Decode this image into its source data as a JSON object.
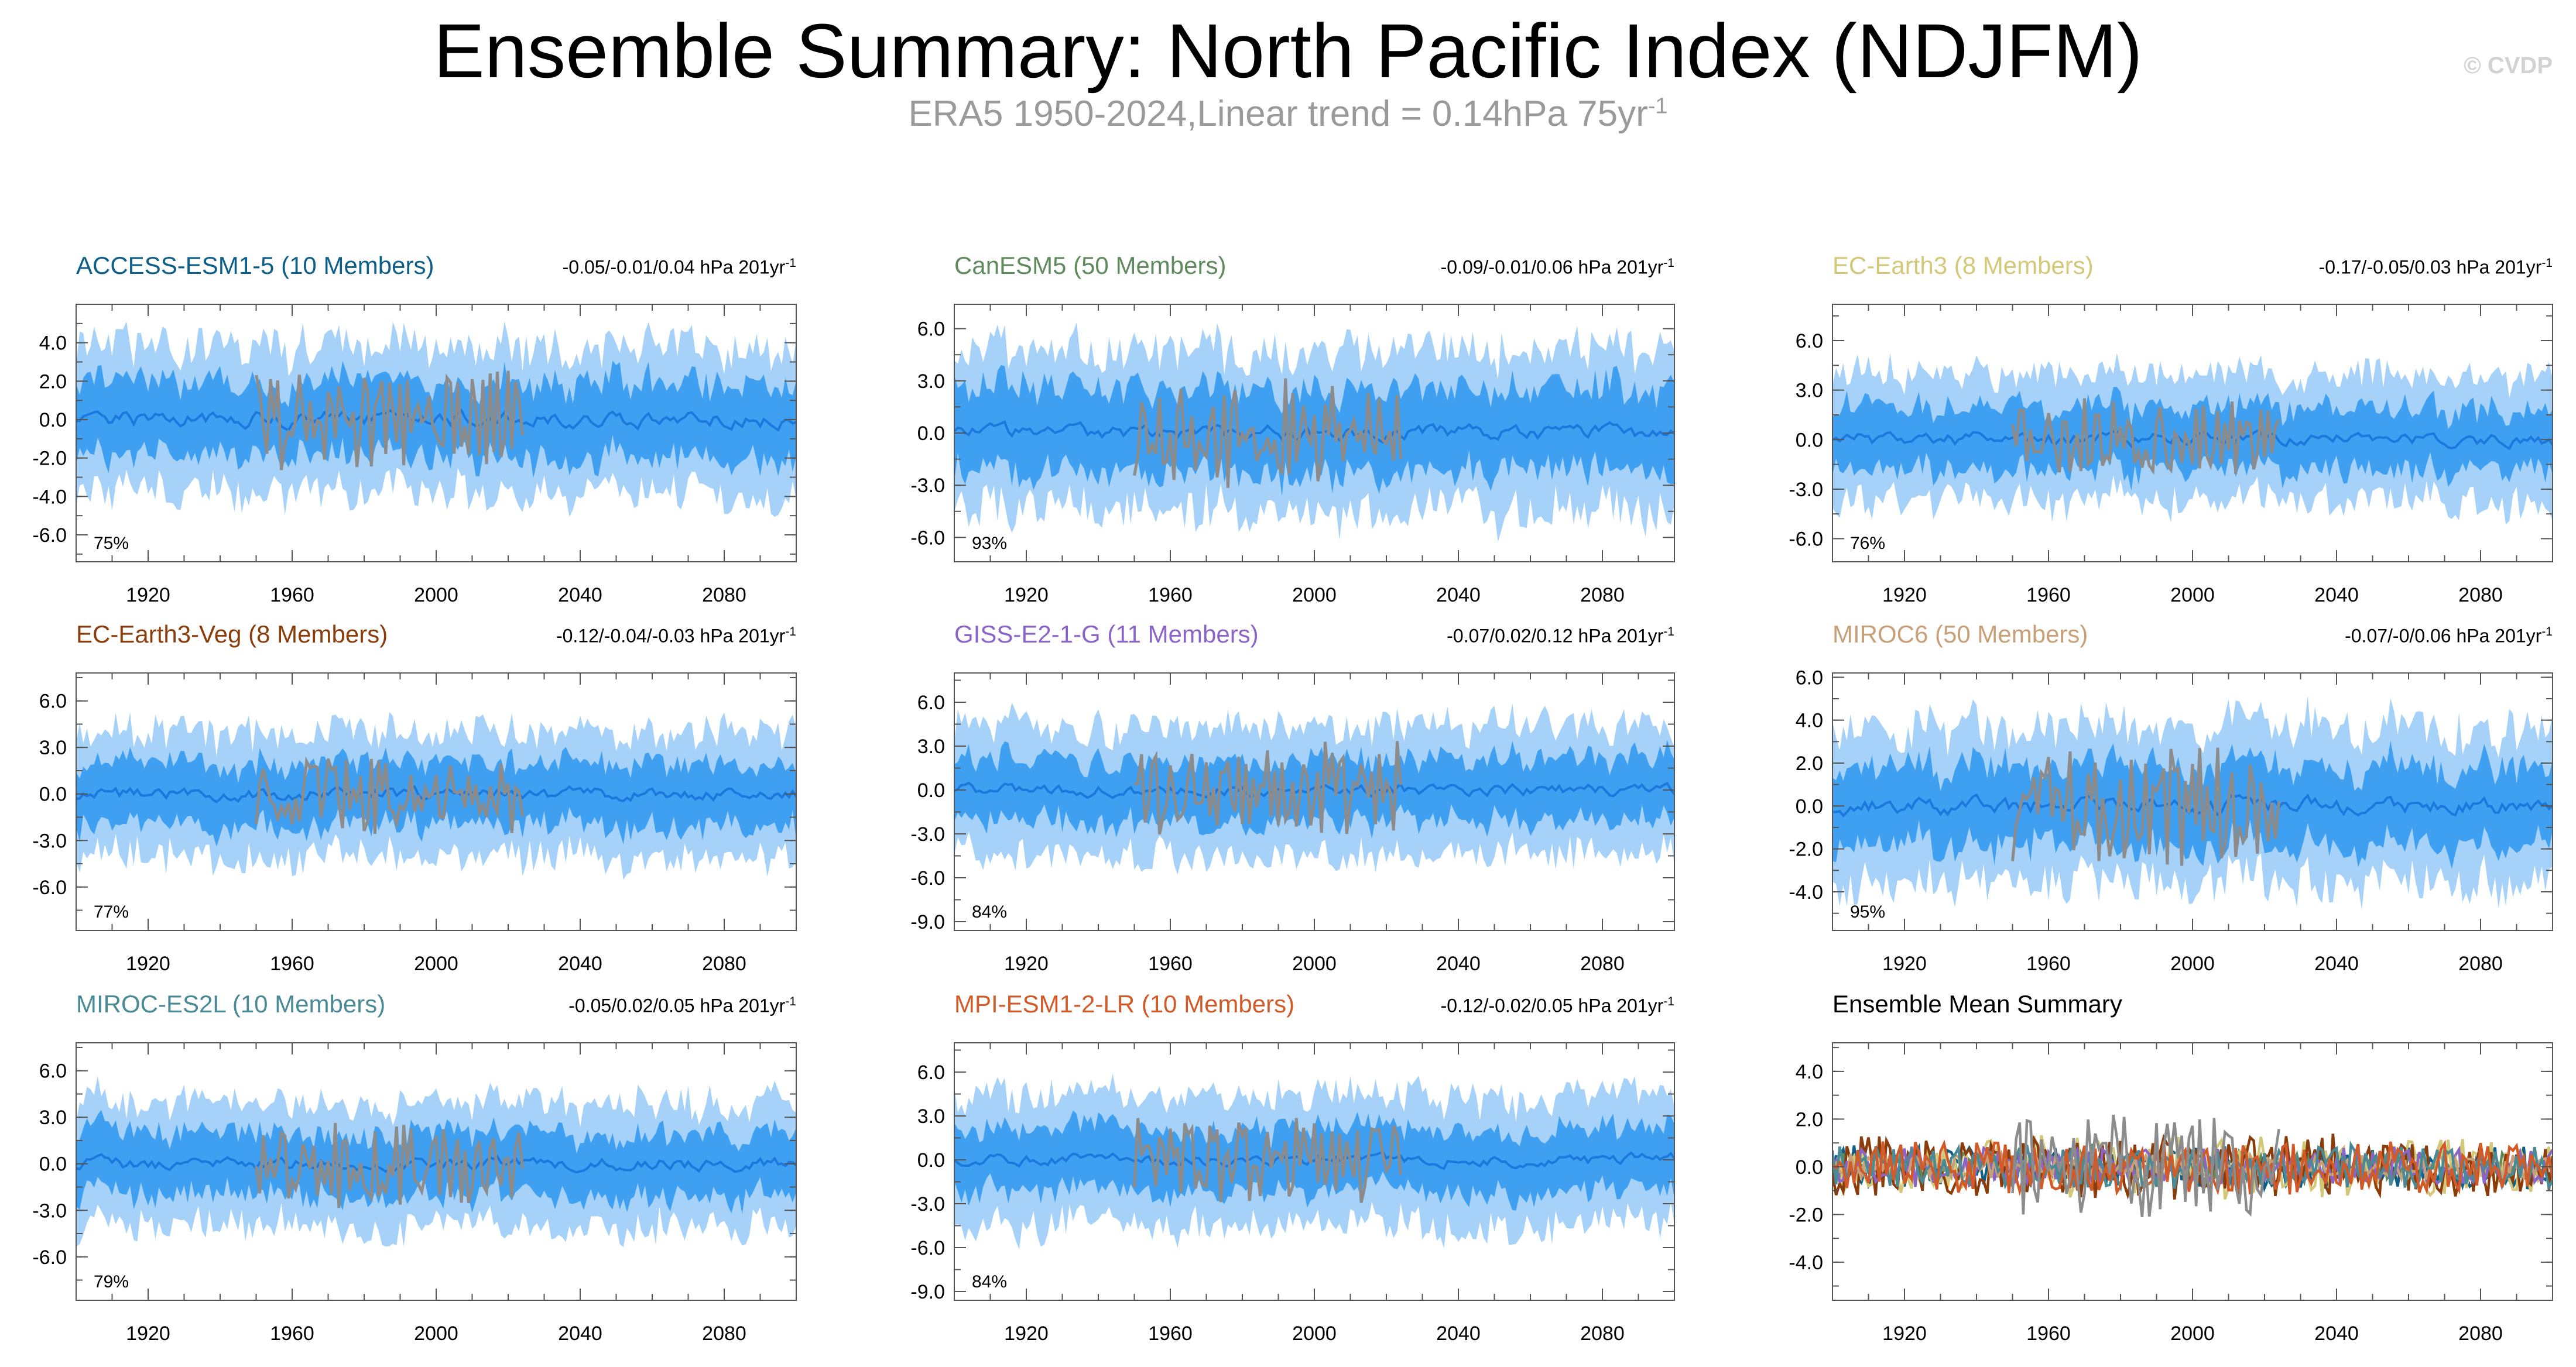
{
  "title": "Ensemble Summary: North Pacific Index (NDJFM)",
  "subtitle": "ERA5 1950-2024,Linear trend = 0.14hPa 75yr",
  "subtitle_superscript": "-1",
  "credit": "© CVDP",
  "colors": {
    "outer_band": "#a6d2fa",
    "inner_band": "#3fa0f2",
    "ensemble_mean": "#1c78dc",
    "observations": "#8c8c8c",
    "axis": "#555555"
  },
  "chart_data": [
    {
      "type": "area",
      "id": "access",
      "title": "ACCESS-ESM1-5 (10 Members)",
      "title_color": "#0d5f8a",
      "trend": "-0.05/-0.01/0.04 hPa 201yr",
      "trend_superscript": "-1",
      "percent": "75%",
      "xlim": [
        1900,
        2100
      ],
      "ylim": [
        -7.4,
        6.0
      ],
      "xticks": [
        "1920",
        "1960",
        "2000",
        "2040",
        "2080"
      ],
      "yticks": [
        "4.0",
        "2.0",
        "0.0",
        "-2.0",
        "-4.0",
        "-6.0"
      ],
      "outer_amp": 3.8,
      "inner_amp": 1.9,
      "obs_amp": 2.4,
      "trend_slope": 0.0
    },
    {
      "type": "area",
      "id": "canesm5",
      "title": "CanESM5 (50 Members)",
      "title_color": "#5e8a5e",
      "trend": "-0.09/-0.01/0.06 hPa 201yr",
      "trend_superscript": "-1",
      "percent": "93%",
      "xlim": [
        1900,
        2100
      ],
      "ylim": [
        -7.4,
        7.4
      ],
      "xticks": [
        "1920",
        "1960",
        "2000",
        "2040",
        "2080"
      ],
      "yticks": [
        "6.0",
        "3.0",
        "0.0",
        "-3.0",
        "-6.0"
      ],
      "outer_amp": 4.6,
      "inner_amp": 2.4,
      "obs_amp": 2.8,
      "trend_slope": 0.0
    },
    {
      "type": "area",
      "id": "ecearth3",
      "title": "EC-Earth3 (8 Members)",
      "title_color": "#d2c878",
      "trend": "-0.17/-0.05/0.03 hPa 201yr",
      "trend_superscript": "-1",
      "percent": "76%",
      "xlim": [
        1900,
        2100
      ],
      "ylim": [
        -7.4,
        8.2
      ],
      "xticks": [
        "1920",
        "1960",
        "2000",
        "2040",
        "2080"
      ],
      "yticks": [
        "6.0",
        "3.0",
        "0.0",
        "-3.0",
        "-6.0"
      ],
      "outer_amp": 3.8,
      "inner_amp": 1.9,
      "obs_amp": 2.2,
      "trend_slope": 0.0
    },
    {
      "type": "area",
      "id": "ecearth3veg",
      "title": "EC-Earth3-Veg (8 Members)",
      "title_color": "#8a3c0a",
      "trend": "-0.12/-0.04/-0.03 hPa 201yr",
      "trend_superscript": "-1",
      "percent": "77%",
      "xlim": [
        1900,
        2100
      ],
      "ylim": [
        -8.8,
        7.8
      ],
      "xticks": [
        "1920",
        "1960",
        "2000",
        "2040",
        "2080"
      ],
      "yticks": [
        "6.0",
        "3.0",
        "0.0",
        "-3.0",
        "-6.0"
      ],
      "outer_amp": 4.0,
      "inner_amp": 2.0,
      "obs_amp": 2.4,
      "trend_slope": 0.0
    },
    {
      "type": "area",
      "id": "giss",
      "title": "GISS-E2-1-G (11 Members)",
      "title_color": "#8a64c8",
      "trend": "-0.07/0.02/0.12 hPa 201yr",
      "trend_superscript": "-1",
      "percent": "84%",
      "xlim": [
        1900,
        2100
      ],
      "ylim": [
        -9.6,
        8.0
      ],
      "xticks": [
        "1920",
        "1960",
        "2000",
        "2040",
        "2080"
      ],
      "yticks": [
        "6.0",
        "3.0",
        "0.0",
        "-3.0",
        "-6.0",
        "-9.0"
      ],
      "outer_amp": 4.4,
      "inner_amp": 2.1,
      "obs_amp": 2.8,
      "trend_slope": 0.0
    },
    {
      "type": "area",
      "id": "miroc6",
      "title": "MIROC6 (50 Members)",
      "title_color": "#c8a078",
      "trend": "-0.07/-0/0.06 hPa 201yr",
      "trend_superscript": "-1",
      "percent": "95%",
      "xlim": [
        1900,
        2100
      ],
      "ylim": [
        -5.8,
        6.2
      ],
      "xticks": [
        "1920",
        "1960",
        "2000",
        "2040",
        "2080"
      ],
      "yticks": [
        "6.0",
        "4.0",
        "2.0",
        "0.0",
        "-2.0",
        "-4.0"
      ],
      "outer_amp": 3.6,
      "inner_amp": 1.8,
      "obs_amp": 2.6,
      "trend_slope": 0.0
    },
    {
      "type": "area",
      "id": "mirocesl",
      "title": "MIROC-ES2L (10 Members)",
      "title_color": "#4a8a96",
      "trend": "-0.05/0.02/0.05 hPa 201yr",
      "trend_superscript": "-1",
      "percent": "79%",
      "xlim": [
        1900,
        2100
      ],
      "ylim": [
        -8.8,
        7.8
      ],
      "xticks": [
        "1920",
        "1960",
        "2000",
        "2040",
        "2080"
      ],
      "yticks": [
        "6.0",
        "3.0",
        "0.0",
        "-3.0",
        "-6.0"
      ],
      "outer_amp": 4.0,
      "inner_amp": 2.0,
      "obs_amp": 2.6,
      "trend_slope": 0.0
    },
    {
      "type": "area",
      "id": "mpi",
      "title": "MPI-ESM1-2-LR (10 Members)",
      "title_color": "#d25a28",
      "trend": "-0.12/-0.02/0.05 hPa 201yr",
      "trend_superscript": "-1",
      "percent": "84%",
      "xlim": [
        1900,
        2100
      ],
      "ylim": [
        -9.6,
        8.0
      ],
      "xticks": [
        "1920",
        "1960",
        "2000",
        "2040",
        "2080"
      ],
      "yticks": [
        "6.0",
        "3.0",
        "0.0",
        "-3.0",
        "-6.0",
        "-9.0"
      ],
      "outer_amp": 4.4,
      "inner_amp": 2.1,
      "obs_amp": 2.6,
      "trend_slope": 0.0
    },
    {
      "type": "line",
      "id": "meansummary",
      "title": "Ensemble Mean Summary",
      "title_color": "#000000",
      "trend": "",
      "trend_superscript": "",
      "percent": "",
      "xlim": [
        1900,
        2100
      ],
      "ylim": [
        -5.6,
        5.2
      ],
      "xticks": [
        "1920",
        "1960",
        "2000",
        "2040",
        "2080"
      ],
      "yticks": [
        "4.0",
        "2.0",
        "0.0",
        "-2.0",
        "-4.0"
      ],
      "series": [
        {
          "name": "ACCESS-ESM1-5",
          "color": "#0d5f8a",
          "amp": 0.9
        },
        {
          "name": "CanESM5",
          "color": "#5e8a5e",
          "amp": 0.6
        },
        {
          "name": "EC-Earth3",
          "color": "#d2c878",
          "amp": 1.3
        },
        {
          "name": "EC-Earth3-Veg",
          "color": "#8a3c0a",
          "amp": 1.3
        },
        {
          "name": "GISS-E2-1-G",
          "color": "#8a64c8",
          "amp": 0.8
        },
        {
          "name": "MIROC6",
          "color": "#c8a078",
          "amp": 0.5
        },
        {
          "name": "MIROC-ES2L",
          "color": "#4a8a96",
          "amp": 0.9
        },
        {
          "name": "MPI-ESM1-2-LR",
          "color": "#d25a28",
          "amp": 1.1
        },
        {
          "name": "ERA5",
          "color": "#8c8c8c",
          "amp": 2.2
        }
      ]
    }
  ]
}
